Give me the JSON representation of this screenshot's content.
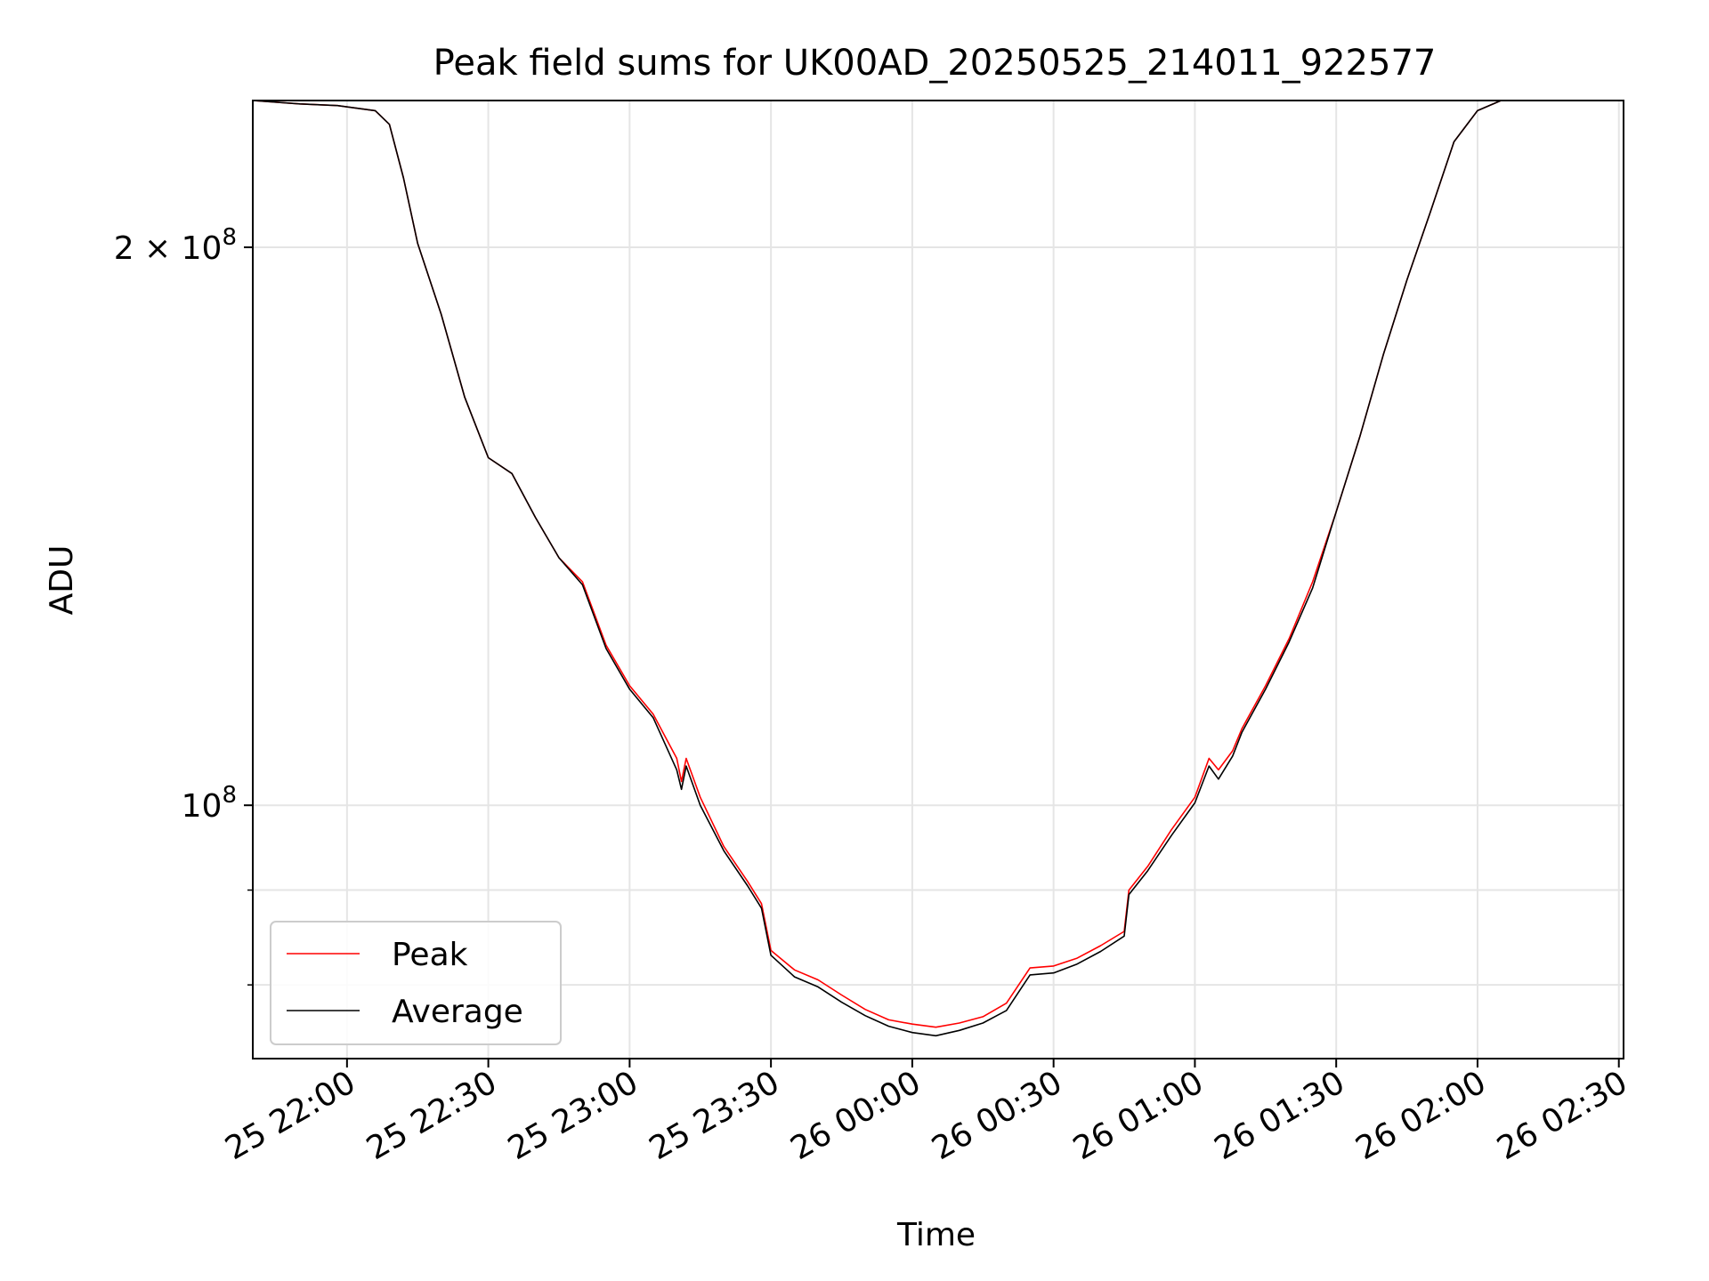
{
  "chart_data": {
    "type": "line",
    "title": "Peak field sums for UK00AD_20250525_214011_922577",
    "xlabel": "Time",
    "ylabel": "ADU",
    "yscale": "log",
    "grid": true,
    "legend_position": "lower-left",
    "xlim": [
      "2025-05-25 21:40",
      "2025-05-26 02:31"
    ],
    "ylim": [
      73000000,
      240000000
    ],
    "x_ticks": [
      {
        "time": "2025-05-25 22:00",
        "label": "25 22:00"
      },
      {
        "time": "2025-05-25 22:30",
        "label": "25 22:30"
      },
      {
        "time": "2025-05-25 23:00",
        "label": "25 23:00"
      },
      {
        "time": "2025-05-25 23:30",
        "label": "25 23:30"
      },
      {
        "time": "2025-05-26 00:00",
        "label": "26 00:00"
      },
      {
        "time": "2025-05-26 00:30",
        "label": "26 00:30"
      },
      {
        "time": "2025-05-26 01:00",
        "label": "26 01:00"
      },
      {
        "time": "2025-05-26 01:30",
        "label": "26 01:30"
      },
      {
        "time": "2025-05-26 02:00",
        "label": "26 02:00"
      },
      {
        "time": "2025-05-26 02:30",
        "label": "26 02:30"
      }
    ],
    "y_ticks": [
      {
        "value": 100000000,
        "label_base": "10",
        "label_exp": "8"
      },
      {
        "value": 200000000,
        "label_base": "2 × 10",
        "label_exp": "8"
      }
    ],
    "y_minor_ticks": [
      80000000,
      90000000
    ],
    "series": [
      {
        "name": "Peak",
        "color": "#ff0000",
        "points": [
          [
            "2025-05-25 21:40",
            240000000
          ],
          [
            "2025-05-25 21:50",
            239000000
          ],
          [
            "2025-05-25 21:58",
            238500000
          ],
          [
            "2025-05-25 22:06",
            237000000
          ],
          [
            "2025-05-25 22:09",
            233000000
          ],
          [
            "2025-05-25 22:12",
            218000000
          ],
          [
            "2025-05-25 22:15",
            201000000
          ],
          [
            "2025-05-25 22:20",
            184000000
          ],
          [
            "2025-05-25 22:25",
            166000000
          ],
          [
            "2025-05-25 22:30",
            154000000
          ],
          [
            "2025-05-25 22:35",
            151000000
          ],
          [
            "2025-05-25 22:40",
            143000000
          ],
          [
            "2025-05-25 22:45",
            136000000
          ],
          [
            "2025-05-25 22:50",
            132000000
          ],
          [
            "2025-05-25 22:55",
            122000000
          ],
          [
            "2025-05-25 23:00",
            116000000
          ],
          [
            "2025-05-25 23:05",
            112000000
          ],
          [
            "2025-05-25 23:10",
            106000000
          ],
          [
            "2025-05-25 23:11",
            103000000
          ],
          [
            "2025-05-25 23:12",
            106000000
          ],
          [
            "2025-05-25 23:15",
            101000000
          ],
          [
            "2025-05-25 23:20",
            95000000
          ],
          [
            "2025-05-25 23:25",
            91000000
          ],
          [
            "2025-05-25 23:28",
            88500000
          ],
          [
            "2025-05-25 23:30",
            83500000
          ],
          [
            "2025-05-25 23:35",
            81500000
          ],
          [
            "2025-05-25 23:40",
            80500000
          ],
          [
            "2025-05-25 23:45",
            79000000
          ],
          [
            "2025-05-25 23:50",
            77600000
          ],
          [
            "2025-05-25 23:55",
            76600000
          ],
          [
            "2025-05-26 00:00",
            76200000
          ],
          [
            "2025-05-26 00:05",
            75900000
          ],
          [
            "2025-05-26 00:10",
            76300000
          ],
          [
            "2025-05-26 00:15",
            76900000
          ],
          [
            "2025-05-26 00:20",
            78200000
          ],
          [
            "2025-05-26 00:25",
            81700000
          ],
          [
            "2025-05-26 00:30",
            81900000
          ],
          [
            "2025-05-26 00:35",
            82700000
          ],
          [
            "2025-05-26 00:40",
            84000000
          ],
          [
            "2025-05-26 00:45",
            85500000
          ],
          [
            "2025-05-26 00:46",
            90000000
          ],
          [
            "2025-05-26 00:50",
            92700000
          ],
          [
            "2025-05-26 00:55",
            97000000
          ],
          [
            "2025-05-26 01:00",
            101000000
          ],
          [
            "2025-05-26 01:03",
            106000000
          ],
          [
            "2025-05-26 01:05",
            104500000
          ],
          [
            "2025-05-26 01:08",
            107000000
          ],
          [
            "2025-05-26 01:10",
            110000000
          ],
          [
            "2025-05-26 01:15",
            116000000
          ],
          [
            "2025-05-26 01:20",
            123000000
          ],
          [
            "2025-05-26 01:25",
            132000000
          ],
          [
            "2025-05-26 01:30",
            144000000
          ],
          [
            "2025-05-26 01:35",
            158000000
          ],
          [
            "2025-05-26 01:40",
            175000000
          ],
          [
            "2025-05-26 01:45",
            192000000
          ],
          [
            "2025-05-26 01:50",
            209000000
          ],
          [
            "2025-05-26 01:55",
            228000000
          ],
          [
            "2025-05-26 02:00",
            237000000
          ],
          [
            "2025-05-26 02:05",
            240000000
          ],
          [
            "2025-05-26 02:31",
            240000000
          ]
        ]
      },
      {
        "name": "Average",
        "color": "#000000",
        "points": [
          [
            "2025-05-25 21:40",
            240000000
          ],
          [
            "2025-05-25 21:50",
            239000000
          ],
          [
            "2025-05-25 21:58",
            238500000
          ],
          [
            "2025-05-25 22:06",
            237000000
          ],
          [
            "2025-05-25 22:09",
            233000000
          ],
          [
            "2025-05-25 22:12",
            218000000
          ],
          [
            "2025-05-25 22:15",
            201000000
          ],
          [
            "2025-05-25 22:20",
            184000000
          ],
          [
            "2025-05-25 22:25",
            166000000
          ],
          [
            "2025-05-25 22:30",
            154000000
          ],
          [
            "2025-05-25 22:35",
            151000000
          ],
          [
            "2025-05-25 22:40",
            143000000
          ],
          [
            "2025-05-25 22:45",
            136000000
          ],
          [
            "2025-05-25 22:50",
            131500000
          ],
          [
            "2025-05-25 22:55",
            121500000
          ],
          [
            "2025-05-25 23:00",
            115500000
          ],
          [
            "2025-05-25 23:05",
            111500000
          ],
          [
            "2025-05-25 23:10",
            104500000
          ],
          [
            "2025-05-25 23:11",
            102000000
          ],
          [
            "2025-05-25 23:12",
            105000000
          ],
          [
            "2025-05-25 23:15",
            100000000
          ],
          [
            "2025-05-25 23:20",
            94500000
          ],
          [
            "2025-05-25 23:25",
            90500000
          ],
          [
            "2025-05-25 23:28",
            88000000
          ],
          [
            "2025-05-25 23:30",
            83000000
          ],
          [
            "2025-05-25 23:35",
            80800000
          ],
          [
            "2025-05-25 23:40",
            79800000
          ],
          [
            "2025-05-25 23:45",
            78300000
          ],
          [
            "2025-05-25 23:50",
            77000000
          ],
          [
            "2025-05-25 23:55",
            76000000
          ],
          [
            "2025-05-26 00:00",
            75400000
          ],
          [
            "2025-05-26 00:05",
            75100000
          ],
          [
            "2025-05-26 00:10",
            75600000
          ],
          [
            "2025-05-26 00:15",
            76300000
          ],
          [
            "2025-05-26 00:20",
            77500000
          ],
          [
            "2025-05-26 00:25",
            81000000
          ],
          [
            "2025-05-26 00:30",
            81200000
          ],
          [
            "2025-05-26 00:35",
            82100000
          ],
          [
            "2025-05-26 00:40",
            83400000
          ],
          [
            "2025-05-26 00:45",
            85000000
          ],
          [
            "2025-05-26 00:46",
            89500000
          ],
          [
            "2025-05-26 00:50",
            92200000
          ],
          [
            "2025-05-26 00:55",
            96300000
          ],
          [
            "2025-05-26 01:00",
            100300000
          ],
          [
            "2025-05-26 01:03",
            105000000
          ],
          [
            "2025-05-26 01:05",
            103300000
          ],
          [
            "2025-05-26 01:08",
            106300000
          ],
          [
            "2025-05-26 01:10",
            109500000
          ],
          [
            "2025-05-26 01:15",
            115500000
          ],
          [
            "2025-05-26 01:20",
            122500000
          ],
          [
            "2025-05-26 01:25",
            131000000
          ],
          [
            "2025-05-26 01:30",
            144000000
          ],
          [
            "2025-05-26 01:35",
            158000000
          ],
          [
            "2025-05-26 01:40",
            175000000
          ],
          [
            "2025-05-26 01:45",
            192000000
          ],
          [
            "2025-05-26 01:50",
            209000000
          ],
          [
            "2025-05-26 01:55",
            228000000
          ],
          [
            "2025-05-26 02:00",
            237000000
          ],
          [
            "2025-05-26 02:05",
            240000000
          ],
          [
            "2025-05-26 02:31",
            240000000
          ]
        ]
      }
    ]
  }
}
